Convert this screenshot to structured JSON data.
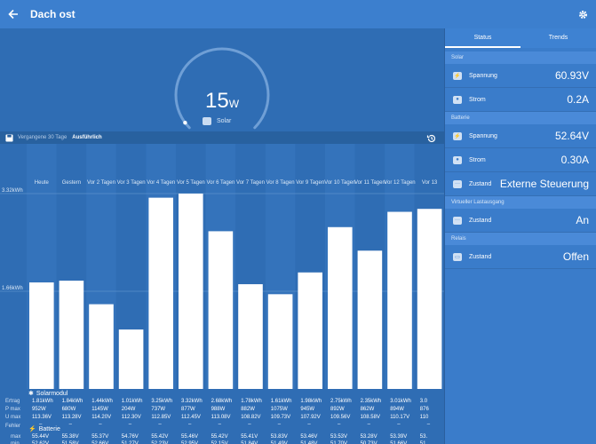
{
  "header": {
    "title": "Dach ost"
  },
  "gauge": {
    "value": "15",
    "unit": "W",
    "label": "Solar",
    "fraction": 0.03
  },
  "chart_toolbar": {
    "tab_past": "Vergangene 30 Tage",
    "tab_detail": "Ausführlich"
  },
  "chart_data": {
    "type": "bar",
    "categories": [
      "Heute",
      "Gestern",
      "Vor 2 Tagen",
      "Vor 3 Tagen",
      "Vor 4 Tagen",
      "Vor 5 Tagen",
      "Vor 6 Tagen",
      "Vor 7 Tagen",
      "Vor 8 Tagen",
      "Vor 9 Tagen",
      "Vor 10 Tagen",
      "Vor 11 Tagen",
      "Vor 12 Tagen",
      "Vor 13"
    ],
    "values": [
      1.81,
      1.84,
      1.44,
      1.01,
      3.25,
      3.32,
      2.68,
      1.78,
      1.61,
      1.98,
      2.75,
      2.35,
      3.01,
      3.06
    ],
    "y_ticks": [
      "3.32kWh",
      "1.66kWh"
    ],
    "ylim": [
      0,
      3.32
    ]
  },
  "solar_section": {
    "label": "Solarmodul",
    "row_labels": [
      "Ertrag",
      "P max",
      "U max"
    ],
    "ertrag": [
      "1.81kWh",
      "1.84kWh",
      "1.44kWh",
      "1.01kWh",
      "3.25kWh",
      "3.32kWh",
      "2.68kWh",
      "1.78kWh",
      "1.61kWh",
      "1.98kWh",
      "2.75kWh",
      "2.35kWh",
      "3.01kWh",
      "3.0"
    ],
    "pmax": [
      "952W",
      "680W",
      "1145W",
      "204W",
      "737W",
      "877W",
      "988W",
      "882W",
      "1075W",
      "945W",
      "892W",
      "862W",
      "894W",
      "876"
    ],
    "umax": [
      "113.36V",
      "113.28V",
      "114.20V",
      "112.30V",
      "112.85V",
      "112.45V",
      "113.08V",
      "108.82V",
      "109.73V",
      "107.92V",
      "109.56V",
      "108.58V",
      "110.17V",
      "110"
    ]
  },
  "battery_section": {
    "label": "Batterie",
    "row_labels": [
      "max",
      "min"
    ],
    "max": [
      "55.44V",
      "55.38V",
      "55.37V",
      "54.76V",
      "55.42V",
      "55.46V",
      "55.42V",
      "55.41V",
      "53.83V",
      "53.46V",
      "53.53V",
      "53.28V",
      "53.39V",
      "53."
    ],
    "min": [
      "52.62V",
      "51.58V",
      "52.66V",
      "51.27V",
      "52.23V",
      "52.95V",
      "52.15V",
      "51.84V",
      "51.49V",
      "51.48V",
      "51.70V",
      "50.73V",
      "51.66V",
      "51."
    ]
  },
  "errors": {
    "label": "Fehler",
    "value": "–"
  },
  "sidebar": {
    "tab_status": "Status",
    "tab_trends": "Trends",
    "solar_header": "Solar",
    "spannung_label": "Spannung",
    "solar_voltage": "60.93V",
    "strom_label": "Strom",
    "solar_current": "0.2A",
    "battery_header": "Batterie",
    "battery_voltage": "52.64V",
    "battery_current": "0.30A",
    "zustand_label": "Zustand",
    "battery_state": "Externe Steuerung",
    "load_header": "Virtueller Lastausgang",
    "load_state": "An",
    "relay_header": "Relais",
    "relay_state": "Offen"
  }
}
